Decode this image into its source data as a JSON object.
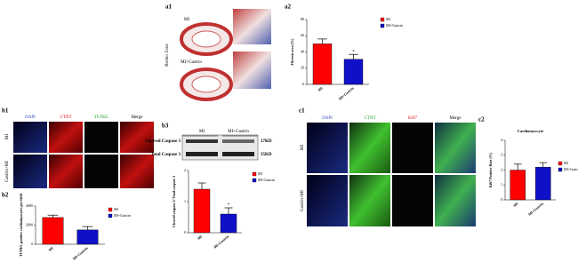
{
  "panels": {
    "a1": {
      "label": "a1",
      "rows": [
        "MI",
        "MI+Gastrin"
      ],
      "zone": "Border Zone"
    },
    "a2": {
      "label": "a2"
    },
    "b1": {
      "label": "b1",
      "columns": [
        "DAPI",
        "CTNT",
        "TUNEL",
        "Merge"
      ],
      "rows": [
        "MI",
        "Gastrin+MI"
      ]
    },
    "b2": {
      "label": "b2"
    },
    "b3": {
      "label": "b3",
      "lanes": [
        "MI",
        "MI+Gastrin"
      ],
      "bands": [
        "Cleaved Caspase 3",
        "Total Caspase 3"
      ],
      "sizes": [
        "17KD",
        "35KD"
      ]
    },
    "c1": {
      "label": "c1",
      "columns": [
        "DAPI",
        "CTNT",
        "Ki67",
        "Merge"
      ],
      "rows": [
        "MI",
        "Gastrin+MI"
      ]
    },
    "c2": {
      "label": "c2"
    }
  },
  "chart_data": [
    {
      "type": "bar",
      "ylabel": "Fibrosis area (%)",
      "categories": [
        "MI",
        "MI+Gastrin"
      ],
      "series": [
        {
          "name": "MI",
          "color": "#ff0000",
          "values": [
            50,
            null
          ],
          "errors": [
            6,
            null
          ]
        },
        {
          "name": "MI+Gastrin",
          "color": "#1010c8",
          "values": [
            null,
            31
          ],
          "errors": [
            null,
            6
          ]
        }
      ],
      "annotation": "*",
      "ylim": [
        0,
        80
      ],
      "yticks": [
        0,
        20,
        40,
        60,
        80
      ]
    },
    {
      "type": "bar",
      "ylabel": "TUNEL positive cardiomyocytes per field",
      "categories": [
        "MI",
        "MI+Gastrin"
      ],
      "series": [
        {
          "name": "MI",
          "color": "#ff0000",
          "values": [
            2800,
            null
          ],
          "errors": [
            250,
            null
          ]
        },
        {
          "name": "MI+Gastrin",
          "color": "#1010c8",
          "values": [
            null,
            1500
          ],
          "errors": [
            null,
            350
          ]
        }
      ],
      "ylim": [
        0,
        4000
      ],
      "yticks": [
        0,
        2000,
        4000
      ]
    },
    {
      "type": "bar",
      "ylabel": "Cleaved caspase 3/ Total caspase 3",
      "categories": [
        "MI",
        "MI+Gastrin"
      ],
      "series": [
        {
          "name": "MI",
          "color": "#ff0000",
          "values": [
            1.4,
            null
          ],
          "errors": [
            0.2,
            null
          ]
        },
        {
          "name": "MI+Gastrin",
          "color": "#1010c8",
          "values": [
            null,
            0.6
          ],
          "errors": [
            null,
            0.2
          ]
        }
      ],
      "annotation": "*",
      "ylim": [
        0,
        2
      ],
      "yticks": [
        0,
        1,
        2
      ]
    },
    {
      "type": "bar",
      "title": "Cardiomyocyte",
      "ylabel": "Ki67 Positive Rate (%)",
      "categories": [
        "MI",
        "MI+Gastrin"
      ],
      "series": [
        {
          "name": "MI",
          "color": "#ff0000",
          "values": [
            2.0,
            null
          ],
          "errors": [
            0.4,
            null
          ]
        },
        {
          "name": "MI+Gastrin",
          "color": "#1010c8",
          "values": [
            null,
            2.2
          ],
          "errors": [
            null,
            0.3
          ]
        }
      ],
      "ylim": [
        0,
        4
      ],
      "yticks": [
        0,
        1,
        2,
        3,
        4
      ]
    }
  ]
}
